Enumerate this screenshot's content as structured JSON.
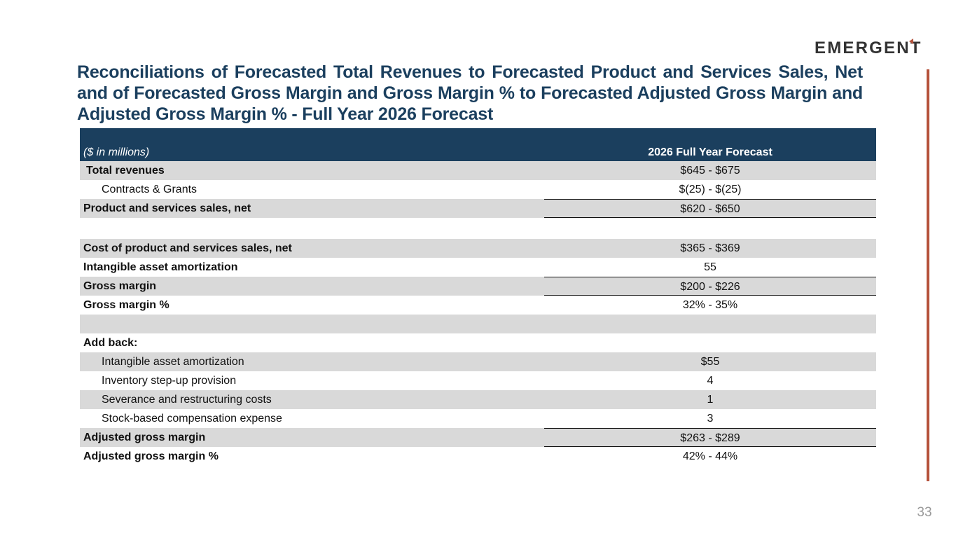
{
  "brand": {
    "logo_text": "EMERGENT",
    "colors": {
      "title": "#1b3f5e",
      "header_bg": "#1b3f5e",
      "stripe": "#d9d9d9",
      "accent_bar": "#b5523b",
      "page_number": "#9a9a9a"
    }
  },
  "slide": {
    "title": "Reconciliations of Forecasted Total Revenues to Forecasted Product and Services Sales, Net and of Forecasted Gross Margin and Gross Margin % to Forecasted Adjusted Gross Margin and Adjusted Gross Margin % - Full Year  2026 Forecast",
    "page_number": "33"
  },
  "table": {
    "units_label": "($ in millions)",
    "column_header": "2026 Full Year Forecast",
    "rows": [
      {
        "label": "Total revenues",
        "value": "$645 - $675"
      },
      {
        "label": "Contracts & Grants",
        "value": "$(25) - $(25)"
      },
      {
        "label": "Product and services sales, net",
        "value": "$620 - $650"
      },
      {
        "label": "",
        "value": ""
      },
      {
        "label": "Cost of product and services sales, net",
        "value": "$365 - $369"
      },
      {
        "label": "Intangible asset amortization",
        "value": "55"
      },
      {
        "label": "Gross margin",
        "value": "$200 - $226"
      },
      {
        "label": "Gross margin %",
        "value": "32% - 35%"
      },
      {
        "label": "",
        "value": ""
      },
      {
        "label": "Add back:",
        "value": ""
      },
      {
        "label": "Intangible asset amortization",
        "value": "$55"
      },
      {
        "label": "Inventory step-up provision",
        "value": "4"
      },
      {
        "label": "Severance and restructuring costs",
        "value": "1"
      },
      {
        "label": "Stock-based compensation expense",
        "value": "3"
      },
      {
        "label": "Adjusted gross margin",
        "value": "$263 - $289"
      },
      {
        "label": "Adjusted gross margin %",
        "value": "42% - 44%"
      }
    ]
  }
}
